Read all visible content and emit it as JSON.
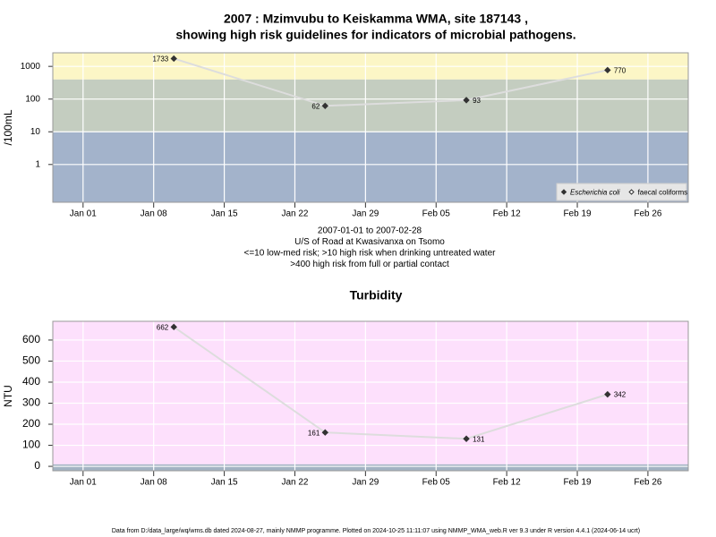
{
  "chart_data": [
    {
      "type": "line",
      "title": [
        "2007 : Mzimvubu to Keiskamma WMA, site 187143 ,",
        "showing high risk guidelines for indicators of microbial pathogens."
      ],
      "y_label": "/100mL",
      "log_scale": true,
      "x": [
        "2007-01-10",
        "2007-01-25",
        "2007-02-08",
        "2007-02-22"
      ],
      "xlim": [
        "2006-12-29",
        "2007-03-02"
      ],
      "xticks": [
        {
          "value": "2007-01-01",
          "label": "Jan 01"
        },
        {
          "value": "2007-01-08",
          "label": "Jan 08"
        },
        {
          "value": "2007-01-15",
          "label": "Jan 15"
        },
        {
          "value": "2007-01-22",
          "label": "Jan 22"
        },
        {
          "value": "2007-01-29",
          "label": "Jan 29"
        },
        {
          "value": "2007-02-05",
          "label": "Feb 05"
        },
        {
          "value": "2007-02-12",
          "label": "Feb 12"
        },
        {
          "value": "2007-02-19",
          "label": "Feb 19"
        },
        {
          "value": "2007-02-26",
          "label": "Feb 26"
        }
      ],
      "ylim": [
        0.07,
        2600
      ],
      "yticks": [
        1,
        10,
        100,
        1000
      ],
      "grid": true,
      "bands": [
        {
          "below": 10,
          "color": "#a3b3cb"
        },
        {
          "below": 400,
          "color": "#c4cdc0"
        },
        {
          "color": "#fcf6c6"
        }
      ],
      "series": [
        {
          "name": "Escherichia coli",
          "color": "#333333",
          "marker": "filled",
          "values": [
            1733,
            62,
            93,
            770
          ]
        },
        {
          "name": "faecal coliforms",
          "color": "#333333",
          "marker": "open",
          "values": [
            null,
            null,
            null,
            null
          ]
        }
      ],
      "line_color": "#dddddd",
      "legend": "bottom-right",
      "notes": [
        "2007-01-01 to 2007-02-28",
        "U/S of Road at Kwasivanxa on Tsomo",
        "<=10 low-med risk; >10 high risk when drinking untreated water",
        ">400 high risk from full or partial contact"
      ]
    },
    {
      "type": "line",
      "title": [
        "Turbidity"
      ],
      "y_label": "NTU",
      "log_scale": false,
      "x": [
        "2007-01-10",
        "2007-01-25",
        "2007-02-08",
        "2007-02-22"
      ],
      "xlim": [
        "2006-12-29",
        "2007-03-02"
      ],
      "xticks": [
        {
          "value": "2007-01-01",
          "label": "Jan 01"
        },
        {
          "value": "2007-01-08",
          "label": "Jan 08"
        },
        {
          "value": "2007-01-15",
          "label": "Jan 15"
        },
        {
          "value": "2007-01-22",
          "label": "Jan 22"
        },
        {
          "value": "2007-01-29",
          "label": "Jan 29"
        },
        {
          "value": "2007-02-05",
          "label": "Feb 05"
        },
        {
          "value": "2007-02-12",
          "label": "Feb 12"
        },
        {
          "value": "2007-02-19",
          "label": "Feb 19"
        },
        {
          "value": "2007-02-26",
          "label": "Feb 26"
        }
      ],
      "ylim": [
        -21,
        689
      ],
      "yticks": [
        0,
        100,
        200,
        300,
        400,
        500,
        600
      ],
      "grid": true,
      "bands": [
        {
          "below": 10,
          "color": "#a3b3c3"
        },
        {
          "color": "#fde0fc"
        }
      ],
      "series": [
        {
          "name": "Turbidity",
          "color": "#333333",
          "marker": "filled",
          "values": [
            662,
            161,
            131,
            342
          ]
        }
      ],
      "line_color": "#dddddd"
    }
  ],
  "footer": "Data from D:/data_large/wq/wms.db dated 2024-08-27, mainly NMMP programme. Plotted on 2024-10-25 11:11:07 using NMMP_WMA_web.R ver 9.3 under R version 4.4.1 (2024-06-14 ucrt)"
}
